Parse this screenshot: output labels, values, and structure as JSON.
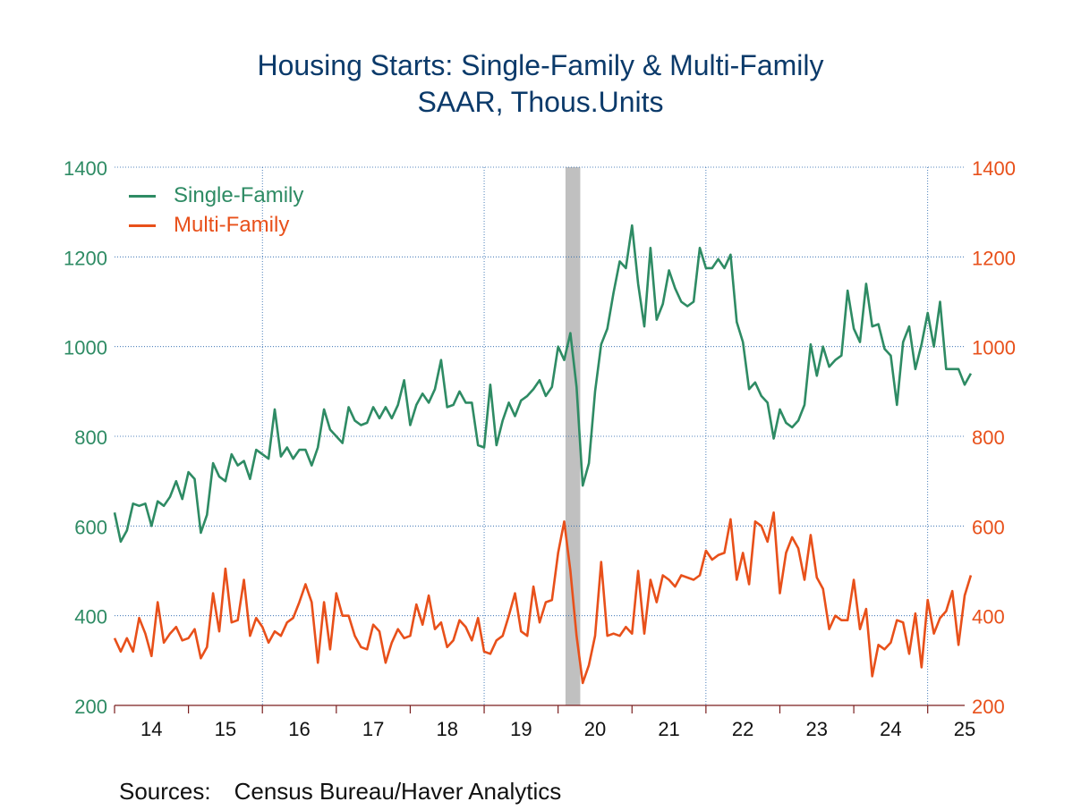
{
  "title": "Housing Starts: Single-Family & Multi-Family",
  "subtitle": "SAAR, Thous.Units",
  "source_label": "Sources:",
  "source_text": "Census Bureau/Haver Analytics",
  "colors": {
    "single_family": "#2e8b64",
    "multi_family": "#e8501a",
    "title": "#0b3a6a",
    "grid": "#1f5fa8",
    "recession": "#c0c0c0"
  },
  "chart_data": {
    "type": "line",
    "title": "Housing Starts: Single-Family & Multi-Family",
    "subtitle": "SAAR, Thous.Units",
    "ylim": [
      200,
      1400
    ],
    "yticks": [
      200,
      400,
      600,
      800,
      1000,
      1200,
      1400
    ],
    "y_axes": [
      "left",
      "right"
    ],
    "x_range": [
      2014.0,
      2025.5
    ],
    "xtick_labels": [
      "14",
      "15",
      "16",
      "17",
      "18",
      "19",
      "20",
      "21",
      "22",
      "23",
      "24",
      "25"
    ],
    "grid": true,
    "legend_position": "top-left",
    "recession_shading": {
      "start": 2020.1,
      "end": 2020.3
    },
    "series": [
      {
        "name": "Single-Family",
        "start": "2014-01",
        "frequency": "monthly",
        "values": [
          630,
          565,
          590,
          650,
          645,
          650,
          600,
          655,
          645,
          665,
          700,
          660,
          720,
          705,
          585,
          625,
          740,
          710,
          700,
          760,
          735,
          745,
          705,
          770,
          760,
          750,
          860,
          755,
          775,
          750,
          770,
          770,
          735,
          775,
          860,
          815,
          800,
          785,
          865,
          835,
          825,
          830,
          865,
          840,
          865,
          840,
          870,
          925,
          825,
          870,
          895,
          875,
          905,
          970,
          865,
          870,
          900,
          875,
          875,
          780,
          775,
          915,
          780,
          835,
          875,
          845,
          880,
          890,
          905,
          925,
          890,
          910,
          1000,
          970,
          1030,
          910,
          690,
          740,
          900,
          1005,
          1040,
          1120,
          1190,
          1175,
          1270,
          1140,
          1045,
          1220,
          1060,
          1095,
          1170,
          1130,
          1100,
          1090,
          1100,
          1220,
          1175,
          1175,
          1195,
          1175,
          1205,
          1055,
          1010,
          905,
          920,
          890,
          875,
          795,
          860,
          830,
          820,
          835,
          870,
          1005,
          935,
          1000,
          955,
          970,
          980,
          1125,
          1040,
          1010,
          1140,
          1045,
          1050,
          995,
          980,
          870,
          1010,
          1045,
          950,
          1005,
          1075,
          1000,
          1100,
          950,
          950,
          950,
          915,
          940
        ]
      },
      {
        "name": "Multi-Family",
        "start": "2014-01",
        "frequency": "monthly",
        "values": [
          350,
          320,
          350,
          320,
          395,
          360,
          310,
          430,
          340,
          360,
          375,
          345,
          350,
          370,
          305,
          330,
          450,
          365,
          505,
          385,
          390,
          480,
          355,
          395,
          375,
          340,
          365,
          355,
          385,
          395,
          430,
          470,
          430,
          295,
          430,
          325,
          450,
          400,
          400,
          355,
          330,
          325,
          380,
          365,
          295,
          340,
          370,
          350,
          355,
          425,
          380,
          445,
          370,
          385,
          330,
          345,
          390,
          375,
          345,
          395,
          320,
          315,
          345,
          355,
          400,
          450,
          365,
          355,
          465,
          385,
          430,
          435,
          540,
          610,
          500,
          355,
          250,
          290,
          355,
          520,
          355,
          360,
          355,
          375,
          360,
          500,
          360,
          480,
          430,
          490,
          480,
          465,
          490,
          485,
          480,
          490,
          545,
          525,
          535,
          540,
          615,
          480,
          540,
          470,
          610,
          600,
          565,
          630,
          450,
          540,
          575,
          550,
          480,
          580,
          485,
          460,
          370,
          400,
          390,
          390,
          480,
          370,
          415,
          265,
          335,
          325,
          340,
          390,
          385,
          315,
          405,
          285,
          435,
          360,
          395,
          410,
          455,
          335,
          445,
          490
        ]
      }
    ]
  }
}
